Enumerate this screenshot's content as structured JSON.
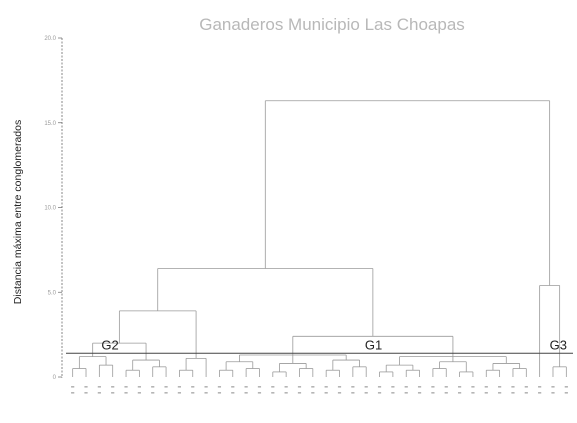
{
  "chart_data": {
    "type": "dendrogram",
    "title": "Ganaderos Municipio Las Choapas",
    "ylabel": "Distancia máxima entre conglomerados",
    "xlabel": "",
    "yticks": [
      "0",
      "5.0",
      "10.0",
      "15.0",
      "20.0"
    ],
    "ylim": [
      0,
      20
    ],
    "cut_height": 1.4,
    "root": {
      "h": 16.3,
      "children": [
        {
          "h": 6.4,
          "children": [
            {
              "h": 3.9,
              "children": [
                {
                  "h": 2.0,
                  "label": "G2",
                  "children": [
                    {
                      "h": 1.2,
                      "children": [
                        {
                          "h": 0.5,
                          "children": [
                            {
                              "h": 0
                            },
                            {
                              "h": 0
                            }
                          ]
                        },
                        {
                          "h": 0.7,
                          "children": [
                            {
                              "h": 0
                            },
                            {
                              "h": 0
                            }
                          ]
                        }
                      ]
                    },
                    {
                      "h": 1.0,
                      "children": [
                        {
                          "h": 0.4,
                          "children": [
                            {
                              "h": 0
                            },
                            {
                              "h": 0
                            }
                          ]
                        },
                        {
                          "h": 0.6,
                          "children": [
                            {
                              "h": 0
                            },
                            {
                              "h": 0
                            }
                          ]
                        }
                      ]
                    }
                  ]
                },
                {
                  "h": 1.1,
                  "children": [
                    {
                      "h": 0.4,
                      "children": [
                        {
                          "h": 0
                        },
                        {
                          "h": 0
                        }
                      ]
                    },
                    {
                      "h": 0
                    }
                  ]
                }
              ]
            },
            {
              "h": 2.4,
              "label": "G1",
              "children": [
                {
                  "h": 1.3,
                  "children": [
                    {
                      "h": 0.9,
                      "children": [
                        {
                          "h": 0.4,
                          "children": [
                            {
                              "h": 0
                            },
                            {
                              "h": 0
                            }
                          ]
                        },
                        {
                          "h": 0.5,
                          "children": [
                            {
                              "h": 0
                            },
                            {
                              "h": 0
                            }
                          ]
                        }
                      ]
                    },
                    {
                      "h": 0.8,
                      "children": [
                        {
                          "h": 0.3,
                          "children": [
                            {
                              "h": 0
                            },
                            {
                              "h": 0
                            }
                          ]
                        },
                        {
                          "h": 0.5,
                          "children": [
                            {
                              "h": 0
                            },
                            {
                              "h": 0
                            }
                          ]
                        }
                      ]
                    },
                    {
                      "h": 1.0,
                      "children": [
                        {
                          "h": 0.4,
                          "children": [
                            {
                              "h": 0
                            },
                            {
                              "h": 0
                            }
                          ]
                        },
                        {
                          "h": 0.6,
                          "children": [
                            {
                              "h": 0
                            },
                            {
                              "h": 0
                            }
                          ]
                        }
                      ]
                    }
                  ]
                },
                {
                  "h": 1.2,
                  "children": [
                    {
                      "h": 0.7,
                      "children": [
                        {
                          "h": 0.3,
                          "children": [
                            {
                              "h": 0
                            },
                            {
                              "h": 0
                            }
                          ]
                        },
                        {
                          "h": 0.4,
                          "children": [
                            {
                              "h": 0
                            },
                            {
                              "h": 0
                            }
                          ]
                        }
                      ]
                    },
                    {
                      "h": 0.9,
                      "children": [
                        {
                          "h": 0.5,
                          "children": [
                            {
                              "h": 0
                            },
                            {
                              "h": 0
                            }
                          ]
                        },
                        {
                          "h": 0.3,
                          "children": [
                            {
                              "h": 0
                            },
                            {
                              "h": 0
                            }
                          ]
                        }
                      ]
                    },
                    {
                      "h": 0.8,
                      "children": [
                        {
                          "h": 0.4,
                          "children": [
                            {
                              "h": 0
                            },
                            {
                              "h": 0
                            }
                          ]
                        },
                        {
                          "h": 0.5,
                          "children": [
                            {
                              "h": 0
                            },
                            {
                              "h": 0
                            }
                          ]
                        }
                      ]
                    }
                  ]
                }
              ]
            }
          ]
        },
        {
          "h": 5.4,
          "label": "G3",
          "children": [
            {
              "h": 0
            },
            {
              "h": 0.6,
              "children": [
                {
                  "h": 0
                },
                {
                  "h": 0
                }
              ]
            }
          ]
        }
      ]
    },
    "group_labels": [
      "G2",
      "G1",
      "G3"
    ]
  },
  "colors": {
    "title": "#b8b8b8",
    "line": "#9a9a9a",
    "axis": "#6a6a6a",
    "cut_line": "#444444",
    "text": "#222222"
  }
}
